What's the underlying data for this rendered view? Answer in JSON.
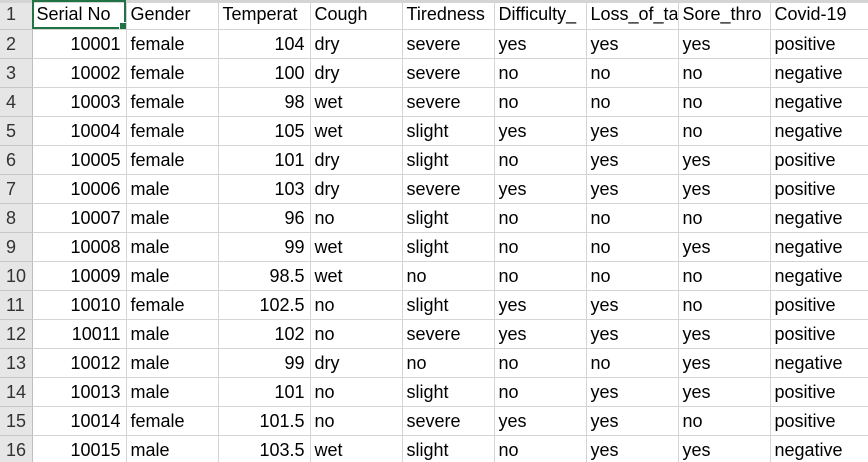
{
  "headers": [
    "Serial No",
    "Gender",
    "Temperat",
    "Cough",
    "Tiredness",
    "Difficulty_",
    "Loss_of_ta",
    "Sore_thro",
    "Covid-19"
  ],
  "rows": [
    {
      "num": "2",
      "cells": [
        "10001",
        "female",
        "104",
        "dry",
        "severe",
        "yes",
        "yes",
        "yes",
        "positive"
      ]
    },
    {
      "num": "3",
      "cells": [
        "10002",
        "female",
        "100",
        "dry",
        "severe",
        "no",
        "no",
        "no",
        "negative"
      ]
    },
    {
      "num": "4",
      "cells": [
        "10003",
        "female",
        "98",
        "wet",
        "severe",
        "no",
        "no",
        "no",
        "negative"
      ]
    },
    {
      "num": "5",
      "cells": [
        "10004",
        "female",
        "105",
        "wet",
        "slight",
        "yes",
        "yes",
        "no",
        "negative"
      ]
    },
    {
      "num": "6",
      "cells": [
        "10005",
        "female",
        "101",
        "dry",
        "slight",
        "no",
        "yes",
        "yes",
        "positive"
      ]
    },
    {
      "num": "7",
      "cells": [
        "10006",
        "male",
        "103",
        "dry",
        "severe",
        "yes",
        "yes",
        "yes",
        "positive"
      ]
    },
    {
      "num": "8",
      "cells": [
        "10007",
        "male",
        "96",
        "no",
        "slight",
        "no",
        "no",
        "no",
        "negative"
      ]
    },
    {
      "num": "9",
      "cells": [
        "10008",
        "male",
        "99",
        "wet",
        "slight",
        "no",
        "no",
        "yes",
        "negative"
      ]
    },
    {
      "num": "10",
      "cells": [
        "10009",
        "male",
        "98.5",
        "wet",
        "no",
        "no",
        "no",
        "no",
        "negative"
      ]
    },
    {
      "num": "11",
      "cells": [
        "10010",
        "female",
        "102.5",
        "no",
        "slight",
        "yes",
        "yes",
        "no",
        "positive"
      ]
    },
    {
      "num": "12",
      "cells": [
        "10011",
        "male",
        "102",
        "no",
        "severe",
        "yes",
        "yes",
        "yes",
        "positive"
      ]
    },
    {
      "num": "13",
      "cells": [
        "10012",
        "male",
        "99",
        "dry",
        "no",
        "no",
        "no",
        "yes",
        "negative"
      ]
    },
    {
      "num": "14",
      "cells": [
        "10013",
        "male",
        "101",
        "no",
        "slight",
        "no",
        "yes",
        "yes",
        "positive"
      ]
    },
    {
      "num": "15",
      "cells": [
        "10014",
        "female",
        "101.5",
        "no",
        "severe",
        "yes",
        "yes",
        "no",
        "positive"
      ]
    },
    {
      "num": "16",
      "cells": [
        "10015",
        "male",
        "103.5",
        "wet",
        "slight",
        "no",
        "yes",
        "yes",
        "negative"
      ]
    }
  ],
  "header_row_num": "1",
  "colors": {
    "selection": "#217346",
    "gridline": "#d4d4d4",
    "row_header_bg": "#e6e6e6"
  }
}
